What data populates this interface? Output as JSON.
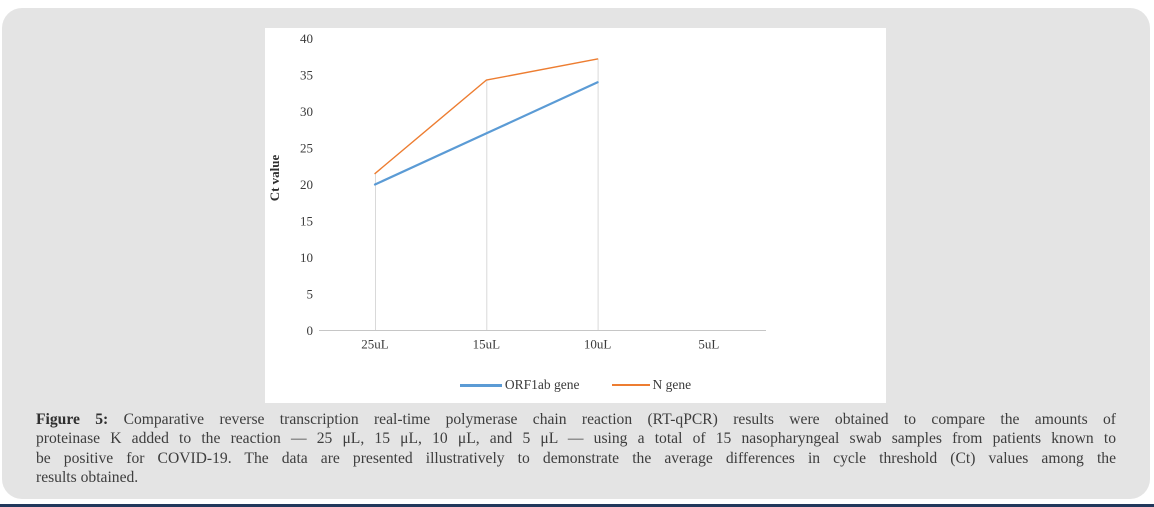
{
  "page": {
    "background": "#ffffff",
    "panel_color": "#e4e4e4",
    "bottom_rule_color": "#21385c"
  },
  "chart_data": {
    "type": "line",
    "title": "",
    "xlabel": "",
    "ylabel": "Ct value",
    "categories": [
      "25uL",
      "15uL",
      "10uL",
      "5uL"
    ],
    "series": [
      {
        "name": "ORF1ab gene",
        "color": "#5b9bd5",
        "values": [
          20,
          27,
          34,
          null
        ]
      },
      {
        "name": "N gene",
        "color": "#ed7d31",
        "values": [
          21.5,
          34.3,
          37.2,
          null
        ]
      }
    ],
    "ylim": [
      0,
      40
    ],
    "ytick_step": 5,
    "yticks": [
      0,
      5,
      10,
      15,
      20,
      25,
      30,
      35,
      40
    ],
    "grid": "vertical drop lines at categories with data only",
    "legend_position": "bottom-center",
    "axis_color": "#c6c6c6",
    "dropline_color": "#d9d9d9",
    "tick_text_color": "#3b3b3b"
  },
  "caption": {
    "label": "Figure 5:",
    "lines": [
      "Comparative reverse transcription real-time polymerase chain reaction (RT-qPCR) results were obtained to compare the amounts of",
      "proteinase K added to the reaction — 25 μL, 15 μL, 10 μL, and 5 μL — using a total of 15 nasopharyngeal swab samples from patients known to",
      "be positive for COVID-19. The data are presented illustratively to demonstrate the average differences in cycle threshold (Ct) values among the",
      "results obtained."
    ]
  }
}
